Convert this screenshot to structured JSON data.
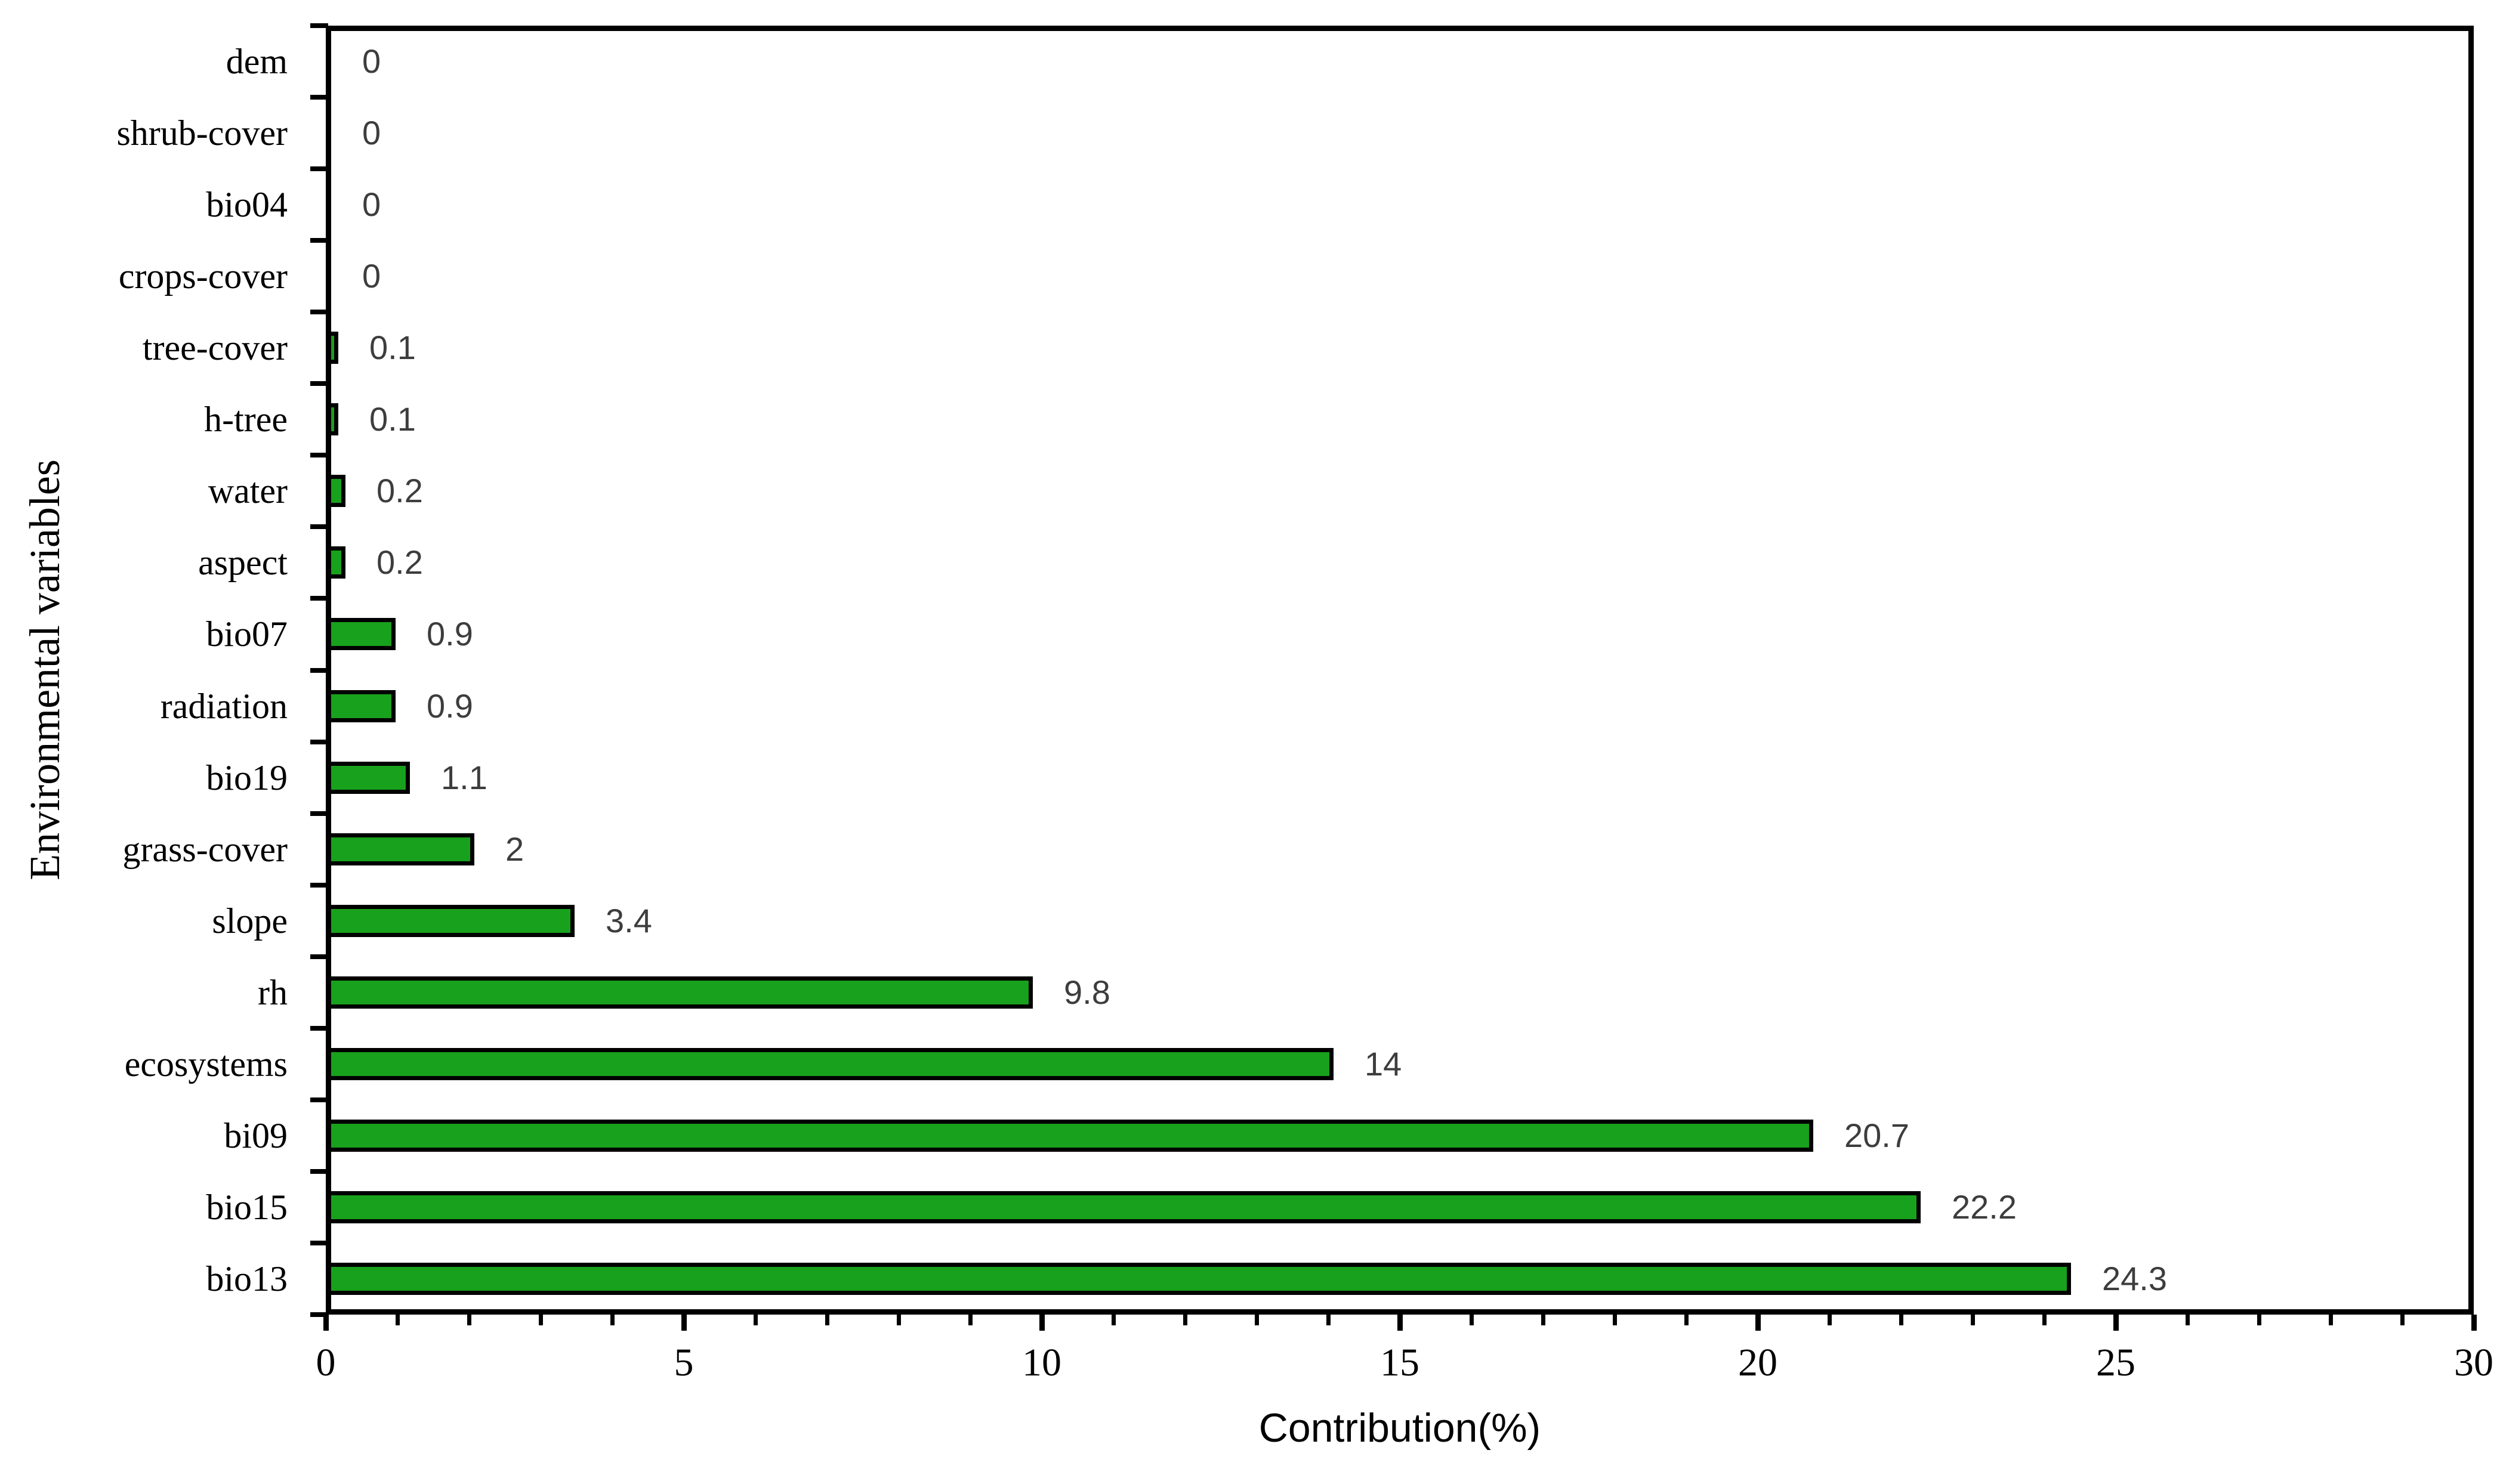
{
  "chart_data": {
    "type": "bar",
    "orientation": "horizontal",
    "categories": [
      "dem",
      "shrub-cover",
      "bio04",
      "crops-cover",
      "tree-cover",
      "h-tree",
      "water",
      "aspect",
      "bio07",
      "radiation",
      "bio19",
      "grass-cover",
      "slope",
      "rh",
      "ecosystems",
      "bi09",
      "bio15",
      "bio13"
    ],
    "values": [
      0,
      0,
      0,
      0,
      0.1,
      0.1,
      0.2,
      0.2,
      0.9,
      0.9,
      1.1,
      2,
      3.4,
      9.8,
      14,
      20.7,
      22.2,
      24.3
    ],
    "value_labels": [
      "0",
      "0",
      "0",
      "0",
      "0.1",
      "0.1",
      "0.2",
      "0.2",
      "0.9",
      "0.9",
      "1.1",
      "2",
      "3.4",
      "9.8",
      "14",
      "20.7",
      "22.2",
      "24.3"
    ],
    "xlabel": "Contribution(%)",
    "ylabel": "Environmental variables",
    "xlim": [
      0,
      30
    ],
    "x_major_ticks": [
      0,
      5,
      10,
      15,
      20,
      25,
      30
    ],
    "x_major_tick_labels": [
      "0",
      "5",
      "10",
      "15",
      "20",
      "25",
      "30"
    ],
    "x_minor_tick_step": 1,
    "grid": false,
    "legend": false,
    "bar_color": "#18a11c",
    "bar_border_color": "#000000",
    "value_label_color": "#3d3d3d",
    "axis_color": "#000000"
  }
}
